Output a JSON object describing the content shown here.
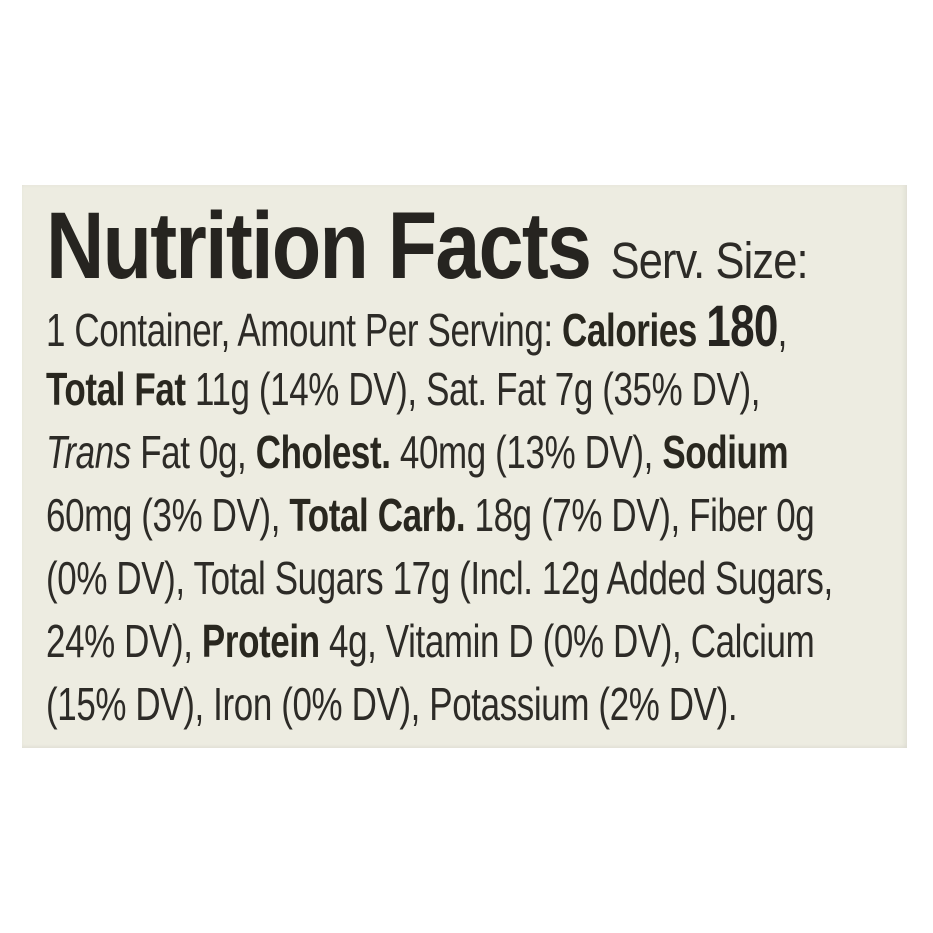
{
  "page": {
    "background": "#ffffff"
  },
  "panel": {
    "background": "#edece1",
    "text_color": "#2d2b27"
  },
  "header": {
    "title": "Nutrition Facts",
    "serving_label": "Serv. Size:"
  },
  "body_lines": [
    {
      "segments": [
        {
          "text": "1 Container, Amount Per Serving: ",
          "style": "regular"
        },
        {
          "text": "Calories ",
          "style": "bold"
        },
        {
          "text": "180",
          "style": "big"
        },
        {
          "text": ",",
          "style": "regular"
        }
      ]
    },
    {
      "segments": [
        {
          "text": "Total Fat ",
          "style": "bold"
        },
        {
          "text": "11g (14% DV), Sat. Fat 7g (35% DV),",
          "style": "regular"
        }
      ]
    },
    {
      "segments": [
        {
          "text": "Trans",
          "style": "italic"
        },
        {
          "text": " Fat 0g, ",
          "style": "regular"
        },
        {
          "text": "Cholest. ",
          "style": "bold"
        },
        {
          "text": "40mg (13% DV), ",
          "style": "regular"
        },
        {
          "text": "Sodium",
          "style": "bold"
        }
      ]
    },
    {
      "segments": [
        {
          "text": "60mg (3% DV), ",
          "style": "regular"
        },
        {
          "text": "Total Carb. ",
          "style": "bold"
        },
        {
          "text": "18g (7% DV), Fiber 0g",
          "style": "regular"
        }
      ]
    },
    {
      "segments": [
        {
          "text": "(0% DV), Total Sugars 17g (Incl. 12g Added Sugars,",
          "style": "regular"
        }
      ]
    },
    {
      "segments": [
        {
          "text": "24% DV), ",
          "style": "regular"
        },
        {
          "text": "Protein ",
          "style": "bold"
        },
        {
          "text": "4g, Vitamin D (0% DV), Calcium",
          "style": "regular"
        }
      ]
    },
    {
      "segments": [
        {
          "text": "(15% DV), Iron (0% DV), Potassium (2% DV).",
          "style": "regular"
        }
      ]
    }
  ],
  "facts": {
    "serving_size": "1 Container",
    "calories": "180",
    "total_fat": "11g (14% DV)",
    "saturated_fat": "7g (35% DV)",
    "trans_fat": "0g",
    "cholesterol": "40mg (13% DV)",
    "sodium": "60mg (3% DV)",
    "total_carbohydrate": "18g (7% DV)",
    "fiber": "0g (0% DV)",
    "total_sugars": "17g",
    "added_sugars": "12g (24% DV)",
    "protein": "4g",
    "vitamin_d": "0% DV",
    "calcium": "15% DV",
    "iron": "0% DV",
    "potassium": "2% DV"
  }
}
